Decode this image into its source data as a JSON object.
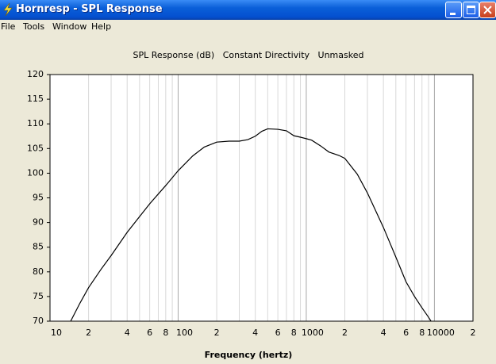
{
  "window": {
    "title": "Hornresp - SPL Response"
  },
  "menu": [
    "File",
    "Tools",
    "Window",
    "Help"
  ],
  "chart_data": {
    "type": "line",
    "title": "SPL Response (dB)   Constant Directivity   Unmasked",
    "xlabel": "Frequency (hertz)",
    "log_x": true,
    "grid": true,
    "x": [
      14.5,
      17,
      20,
      25,
      30,
      40,
      50,
      60,
      80,
      100,
      130,
      160,
      200,
      250,
      300,
      350,
      400,
      450,
      500,
      600,
      700,
      800,
      900,
      1000,
      1100,
      1300,
      1500,
      1800,
      2000,
      2500,
      3000,
      4000,
      5000,
      6000,
      7000,
      8000,
      9000,
      9400
    ],
    "series": [
      {
        "color": "#000000",
        "values": [
          70,
          73.5,
          76.8,
          80.5,
          83.3,
          88,
          91.2,
          93.8,
          97.5,
          100.5,
          103.5,
          105.3,
          106.3,
          106.5,
          106.5,
          106.8,
          107.5,
          108.5,
          109,
          108.9,
          108.6,
          107.6,
          107.3,
          107,
          106.7,
          105.5,
          104.3,
          103.6,
          103,
          99.8,
          96,
          89,
          83,
          78,
          75,
          72.7,
          70.8,
          70
        ]
      }
    ],
    "xlim": [
      10,
      20000
    ],
    "ylim": [
      70,
      120
    ],
    "yticks": [
      70,
      75,
      80,
      85,
      90,
      95,
      100,
      105,
      110,
      115,
      120
    ],
    "xticks": [
      10,
      {
        "value": 20,
        "label": "2"
      },
      {
        "value": 30,
        "label": null
      },
      {
        "value": 40,
        "label": "4"
      },
      {
        "value": 50,
        "label": null
      },
      {
        "value": 60,
        "label": "6"
      },
      {
        "value": 70,
        "label": null
      },
      {
        "value": 80,
        "label": "8"
      },
      {
        "value": 90,
        "label": null
      },
      100,
      {
        "value": 200,
        "label": "2"
      },
      {
        "value": 300,
        "label": null
      },
      {
        "value": 400,
        "label": "4"
      },
      {
        "value": 500,
        "label": null
      },
      {
        "value": 600,
        "label": "6"
      },
      {
        "value": 700,
        "label": null
      },
      {
        "value": 800,
        "label": "8"
      },
      {
        "value": 900,
        "label": null
      },
      1000,
      {
        "value": 2000,
        "label": "2"
      },
      {
        "value": 3000,
        "label": null
      },
      {
        "value": 4000,
        "label": "4"
      },
      {
        "value": 5000,
        "label": null
      },
      {
        "value": 6000,
        "label": "6"
      },
      {
        "value": 7000,
        "label": null
      },
      {
        "value": 8000,
        "label": "8"
      },
      {
        "value": 9000,
        "label": null
      },
      10000,
      {
        "value": 20000,
        "label": "2"
      }
    ]
  }
}
